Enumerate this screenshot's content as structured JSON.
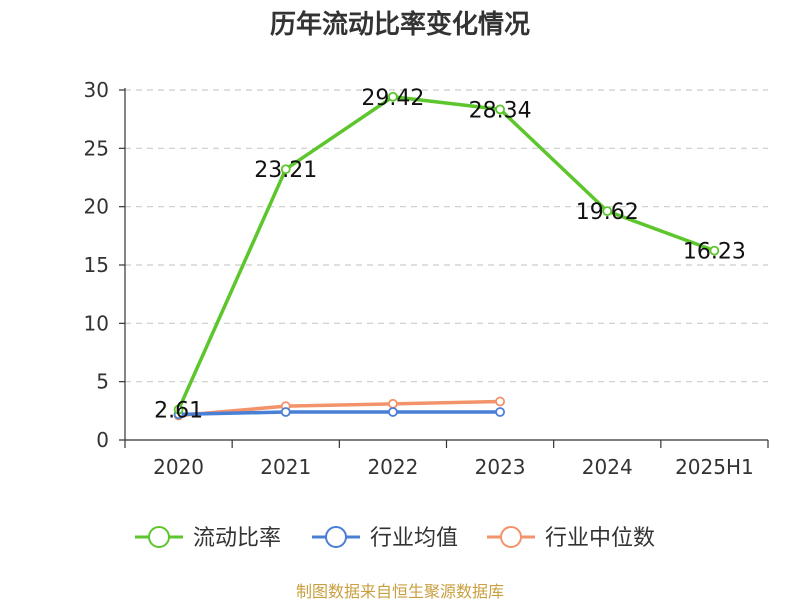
{
  "chart_data": {
    "type": "line",
    "title": "历年流动比率变化情况",
    "categories": [
      "2020",
      "2021",
      "2022",
      "2023",
      "2024",
      "2025H1"
    ],
    "ylim": [
      0,
      30
    ],
    "yticks": [
      "0",
      "5",
      "10",
      "15",
      "20",
      "25",
      "30"
    ],
    "grid": true,
    "legend_position": "bottom",
    "series": [
      {
        "name": "流动比率",
        "color": "#5cc62c",
        "values": [
          2.61,
          23.21,
          29.42,
          28.34,
          19.62,
          16.23
        ],
        "labels": [
          "2.61",
          "23.21",
          "29.42",
          "28.34",
          "19.62",
          "16.23"
        ]
      },
      {
        "name": "行业均值",
        "color": "#4a7fd6",
        "values": [
          2.2,
          2.4,
          2.4,
          2.4,
          null,
          null
        ]
      },
      {
        "name": "行业中位数",
        "color": "#f2936a",
        "values": [
          2.1,
          2.9,
          3.1,
          3.3,
          null,
          null
        ]
      }
    ]
  },
  "footer": {
    "source": "制图数据来自恒生聚源数据库"
  }
}
